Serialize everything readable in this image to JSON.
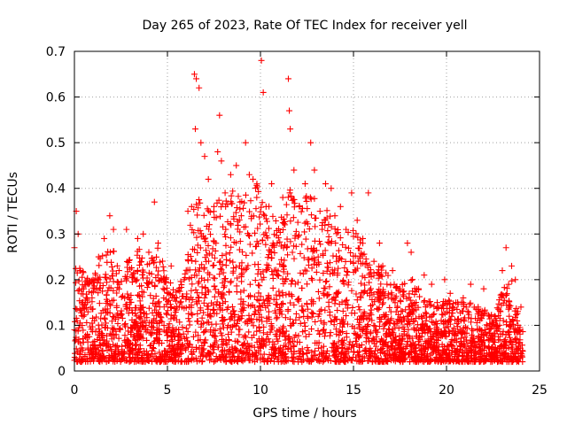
{
  "chart_data": {
    "type": "scatter",
    "title": "Day 265 of 2023, Rate Of TEC Index for receiver yell",
    "xlabel": "GPS time / hours",
    "ylabel": "ROTI / TECUs",
    "xlim": [
      0,
      25
    ],
    "ylim": [
      0,
      0.7
    ],
    "x_ticks": [
      "0",
      "5",
      "10",
      "15",
      "20",
      "25"
    ],
    "y_ticks": [
      "0",
      "0.1",
      "0.2",
      "0.3",
      "0.4",
      "0.5",
      "0.6",
      "0.7"
    ],
    "grid": true,
    "legend": "none",
    "marker": "+",
    "color": "#ff0000",
    "series": [
      {
        "name": "ROTI",
        "points": [
          [
            0.0,
            0.27
          ],
          [
            0.1,
            0.35
          ],
          [
            0.2,
            0.3
          ],
          [
            0.3,
            0.22
          ],
          [
            0.5,
            0.18
          ],
          [
            0.7,
            0.15
          ],
          [
            1.0,
            0.2
          ],
          [
            1.3,
            0.25
          ],
          [
            1.6,
            0.29
          ],
          [
            1.9,
            0.34
          ],
          [
            2.1,
            0.31
          ],
          [
            2.4,
            0.22
          ],
          [
            2.8,
            0.31
          ],
          [
            3.1,
            0.21
          ],
          [
            3.4,
            0.29
          ],
          [
            3.7,
            0.3
          ],
          [
            4.0,
            0.26
          ],
          [
            4.3,
            0.37
          ],
          [
            4.5,
            0.28
          ],
          [
            4.8,
            0.2
          ],
          [
            5.2,
            0.23
          ],
          [
            5.5,
            0.16
          ],
          [
            5.9,
            0.2
          ],
          [
            6.1,
            0.35
          ],
          [
            6.3,
            0.36
          ],
          [
            6.45,
            0.65
          ],
          [
            6.55,
            0.64
          ],
          [
            6.7,
            0.62
          ],
          [
            6.5,
            0.53
          ],
          [
            6.8,
            0.5
          ],
          [
            7.0,
            0.47
          ],
          [
            7.2,
            0.42
          ],
          [
            7.5,
            0.36
          ],
          [
            7.7,
            0.48
          ],
          [
            7.8,
            0.56
          ],
          [
            7.9,
            0.46
          ],
          [
            8.1,
            0.39
          ],
          [
            8.4,
            0.43
          ],
          [
            8.7,
            0.45
          ],
          [
            8.9,
            0.37
          ],
          [
            9.2,
            0.5
          ],
          [
            9.4,
            0.43
          ],
          [
            9.6,
            0.42
          ],
          [
            9.8,
            0.38
          ],
          [
            10.05,
            0.68
          ],
          [
            10.15,
            0.61
          ],
          [
            10.3,
            0.36
          ],
          [
            10.6,
            0.41
          ],
          [
            10.9,
            0.28
          ],
          [
            11.2,
            0.38
          ],
          [
            11.5,
            0.64
          ],
          [
            11.55,
            0.57
          ],
          [
            11.6,
            0.53
          ],
          [
            11.8,
            0.44
          ],
          [
            12.1,
            0.36
          ],
          [
            12.4,
            0.41
          ],
          [
            12.7,
            0.5
          ],
          [
            12.9,
            0.44
          ],
          [
            13.2,
            0.35
          ],
          [
            13.5,
            0.41
          ],
          [
            13.8,
            0.4
          ],
          [
            14.0,
            0.34
          ],
          [
            14.3,
            0.36
          ],
          [
            14.6,
            0.31
          ],
          [
            14.9,
            0.39
          ],
          [
            15.2,
            0.33
          ],
          [
            15.5,
            0.29
          ],
          [
            15.8,
            0.39
          ],
          [
            16.1,
            0.24
          ],
          [
            16.4,
            0.28
          ],
          [
            16.8,
            0.19
          ],
          [
            17.1,
            0.22
          ],
          [
            17.5,
            0.18
          ],
          [
            17.9,
            0.28
          ],
          [
            18.1,
            0.26
          ],
          [
            18.5,
            0.18
          ],
          [
            18.8,
            0.21
          ],
          [
            19.2,
            0.19
          ],
          [
            19.5,
            0.15
          ],
          [
            19.9,
            0.2
          ],
          [
            20.2,
            0.17
          ],
          [
            20.6,
            0.15
          ],
          [
            20.9,
            0.16
          ],
          [
            21.3,
            0.19
          ],
          [
            21.7,
            0.14
          ],
          [
            22.0,
            0.18
          ],
          [
            22.3,
            0.12
          ],
          [
            22.7,
            0.11
          ],
          [
            23.0,
            0.22
          ],
          [
            23.2,
            0.27
          ],
          [
            23.5,
            0.23
          ],
          [
            23.7,
            0.2
          ],
          [
            24.0,
            0.14
          ]
        ]
      }
    ],
    "upper_envelope": [
      [
        0,
        0.24
      ],
      [
        0.5,
        0.22
      ],
      [
        1,
        0.2
      ],
      [
        1.5,
        0.26
      ],
      [
        2,
        0.28
      ],
      [
        2.5,
        0.22
      ],
      [
        3,
        0.25
      ],
      [
        3.5,
        0.27
      ],
      [
        4,
        0.24
      ],
      [
        4.5,
        0.28
      ],
      [
        5,
        0.2
      ],
      [
        5.5,
        0.18
      ],
      [
        6,
        0.25
      ],
      [
        6.5,
        0.4
      ],
      [
        7,
        0.36
      ],
      [
        7.5,
        0.38
      ],
      [
        8,
        0.38
      ],
      [
        8.5,
        0.4
      ],
      [
        9,
        0.38
      ],
      [
        9.5,
        0.4
      ],
      [
        10,
        0.42
      ],
      [
        10.5,
        0.36
      ],
      [
        11,
        0.32
      ],
      [
        11.5,
        0.4
      ],
      [
        12,
        0.38
      ],
      [
        12.5,
        0.4
      ],
      [
        13,
        0.38
      ],
      [
        13.5,
        0.36
      ],
      [
        14,
        0.32
      ],
      [
        14.5,
        0.3
      ],
      [
        15,
        0.32
      ],
      [
        15.5,
        0.28
      ],
      [
        16,
        0.24
      ],
      [
        16.5,
        0.24
      ],
      [
        17,
        0.2
      ],
      [
        17.5,
        0.18
      ],
      [
        18,
        0.22
      ],
      [
        18.5,
        0.18
      ],
      [
        19,
        0.16
      ],
      [
        19.5,
        0.14
      ],
      [
        20,
        0.16
      ],
      [
        20.5,
        0.15
      ],
      [
        21,
        0.16
      ],
      [
        21.5,
        0.14
      ],
      [
        22,
        0.14
      ],
      [
        22.5,
        0.12
      ],
      [
        23,
        0.18
      ],
      [
        23.5,
        0.2
      ],
      [
        24,
        0.1
      ]
    ],
    "baseline_level": 0.02,
    "x_range_hours": [
      0,
      24.1
    ]
  }
}
